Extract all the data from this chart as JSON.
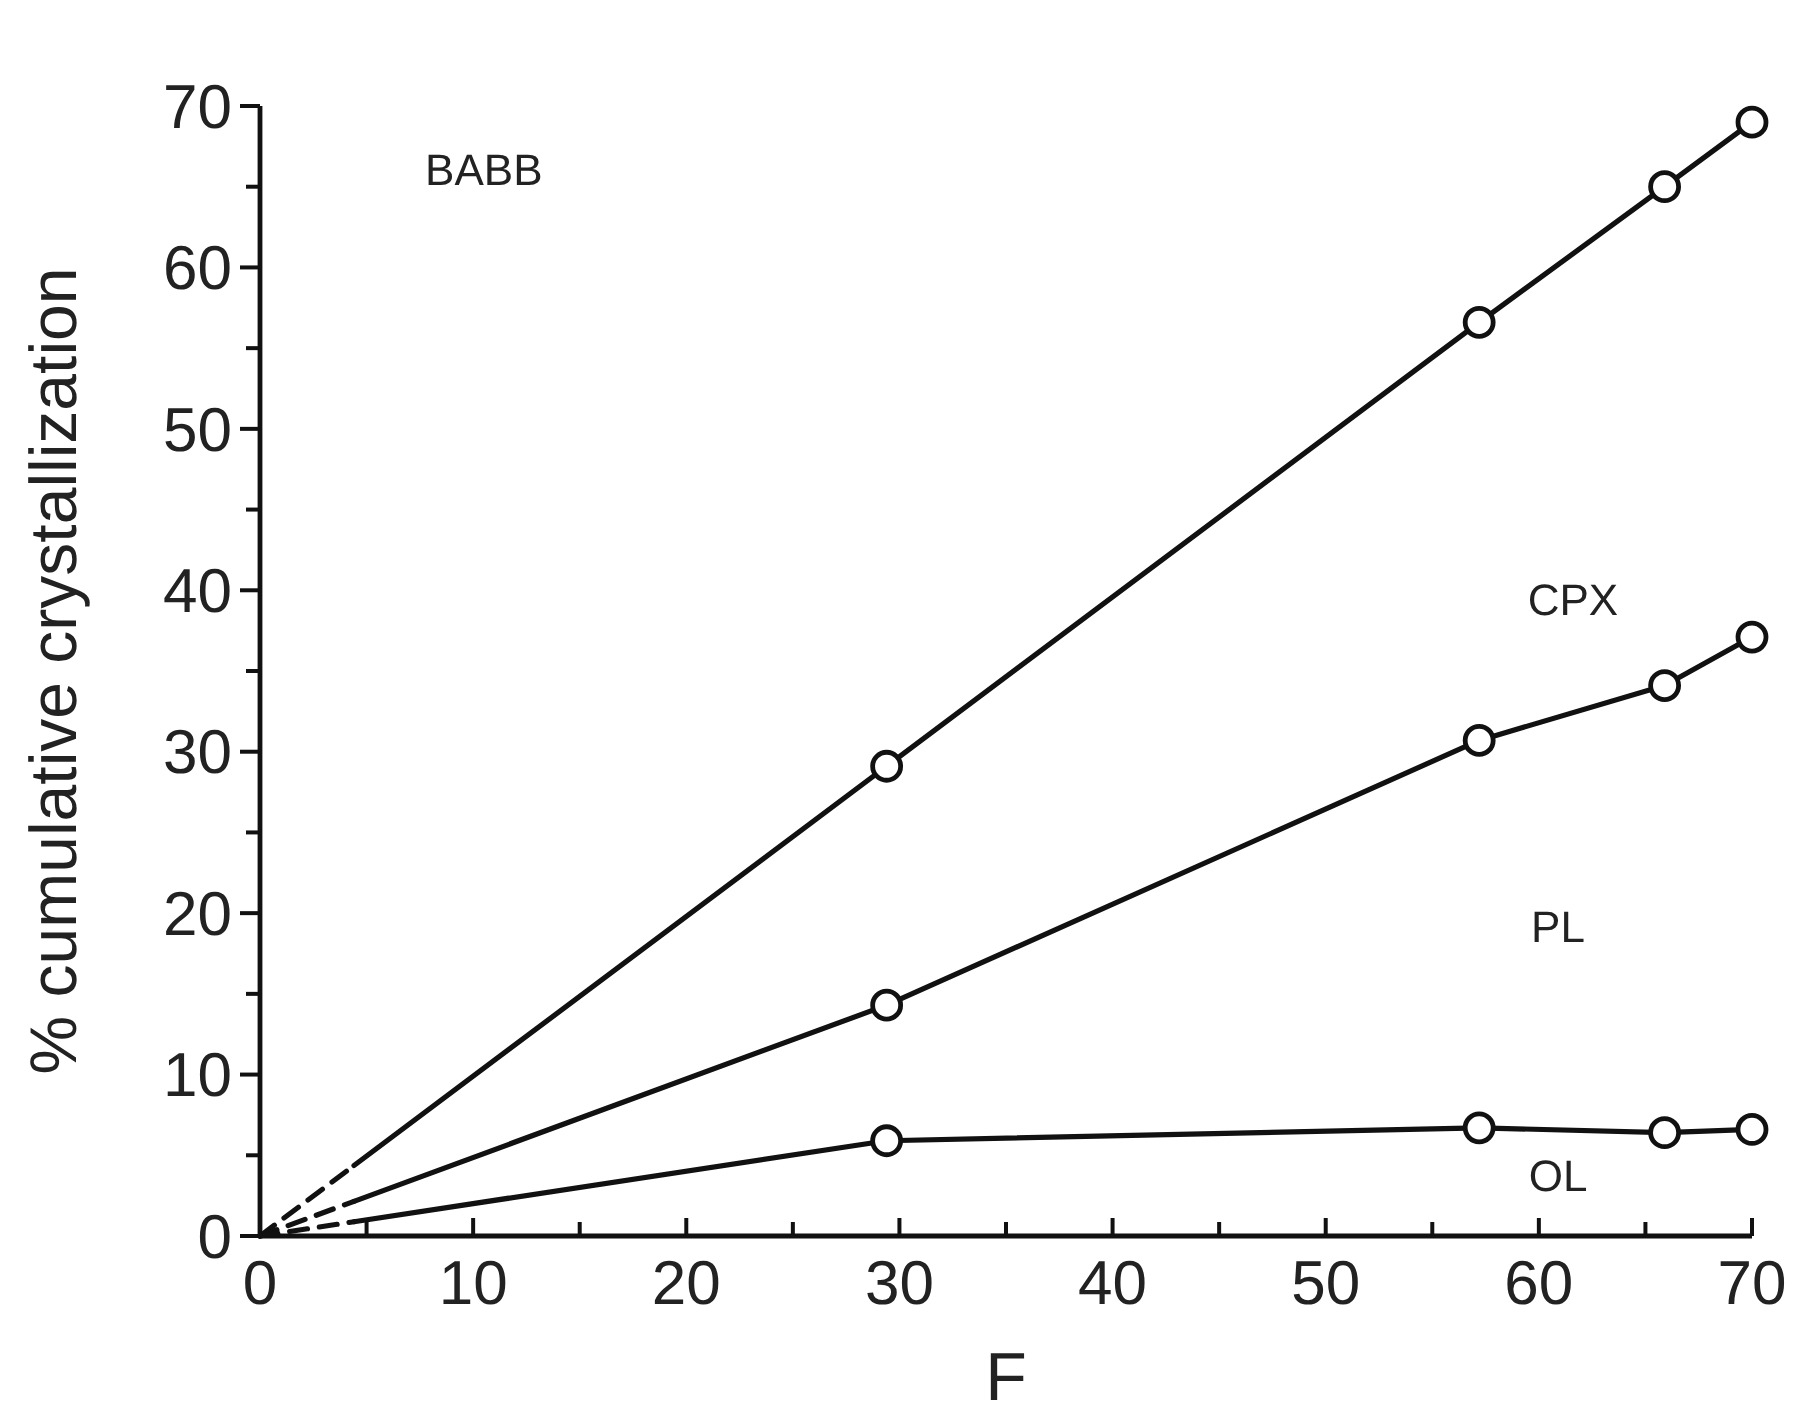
{
  "chart_data": {
    "type": "line",
    "xlabel": "F",
    "ylabel": "% cumulative crystallization",
    "annotations": [
      "BABB",
      "CPX",
      "PL",
      "OL"
    ],
    "x": [
      0,
      29.4,
      57.2,
      65.9,
      70
    ],
    "series": [
      {
        "color": "#111111",
        "values": [
          0,
          29.1,
          56.6,
          65.0,
          69.0
        ]
      },
      {
        "color": "#111111",
        "values": [
          0,
          14.3,
          30.7,
          34.1,
          37.1
        ]
      },
      {
        "color": "#111111",
        "values": [
          0,
          5.9,
          6.7,
          6.4,
          6.6
        ]
      }
    ],
    "xlim": [
      0,
      70
    ],
    "xticks": [
      0,
      {
        "value": 5,
        "label": null
      },
      10,
      {
        "value": 15,
        "label": null
      },
      20,
      {
        "value": 25,
        "label": null
      },
      30,
      {
        "value": 35,
        "label": null
      },
      40,
      {
        "value": 45,
        "label": null
      },
      50,
      {
        "value": 55,
        "label": null
      },
      60,
      {
        "value": 65,
        "label": null
      },
      70
    ],
    "ylim": [
      0,
      70
    ],
    "yticks": [
      0,
      {
        "value": 5,
        "label": null
      },
      10,
      {
        "value": 15,
        "label": null
      },
      20,
      {
        "value": 25,
        "label": null
      },
      30,
      {
        "value": 35,
        "label": null
      },
      40,
      {
        "value": 45,
        "label": null
      },
      50,
      {
        "value": 55,
        "label": null
      },
      60,
      {
        "value": 65,
        "label": null
      },
      70
    ],
    "marker": "circle",
    "line_style": "solid",
    "grid": false
  }
}
